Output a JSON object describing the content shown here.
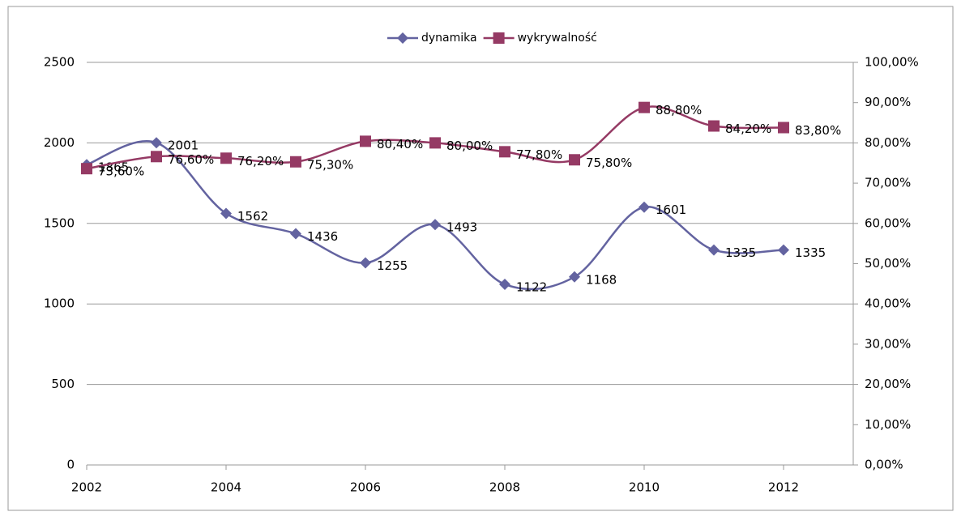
{
  "chart_data": {
    "type": "line",
    "x": [
      2002,
      2003,
      2004,
      2005,
      2006,
      2007,
      2008,
      2009,
      2010,
      2011,
      2012
    ],
    "series": [
      {
        "name": "dynamika",
        "color": "#6363a0",
        "marker": "diamond",
        "values": [
          1865,
          2001,
          1562,
          1436,
          1255,
          1493,
          1122,
          1168,
          1601,
          1335,
          1335
        ]
      },
      {
        "name": "wykrywalność",
        "color": "#953a64",
        "marker": "square",
        "axis": "y2",
        "values": [
          73.6,
          76.6,
          76.2,
          75.3,
          80.4,
          80.0,
          77.8,
          75.8,
          88.8,
          84.2,
          83.8
        ],
        "value_labels": [
          "73,60%",
          "76,60%",
          "76,20%",
          "75,30%",
          "80,40%",
          "80,00%",
          "77,80%",
          "75,80%",
          "88,80%",
          "84,20%",
          "83,80%"
        ]
      }
    ],
    "smooth": true,
    "xlim": [
      2002,
      2013
    ],
    "xticks": [
      2002,
      2004,
      2006,
      2008,
      2010,
      2012
    ],
    "ylim": [
      0,
      2500
    ],
    "yticks": [
      0,
      500,
      1000,
      1500,
      2000,
      2500
    ],
    "y2lim": [
      0,
      100
    ],
    "y2ticks": [
      {
        "value": 0,
        "label": "0,00%"
      },
      {
        "value": 10,
        "label": "10,00%"
      },
      {
        "value": 20,
        "label": "20,00%"
      },
      {
        "value": 30,
        "label": "30,00%"
      },
      {
        "value": 40,
        "label": "40,00%"
      },
      {
        "value": 50,
        "label": "50,00%"
      },
      {
        "value": 60,
        "label": "60,00%"
      },
      {
        "value": 70,
        "label": "70,00%"
      },
      {
        "value": 80,
        "label": "80,00%"
      },
      {
        "value": 90,
        "label": "90,00%"
      },
      {
        "value": 100,
        "label": "100,00%"
      }
    ],
    "grid": true,
    "legend": "top"
  }
}
